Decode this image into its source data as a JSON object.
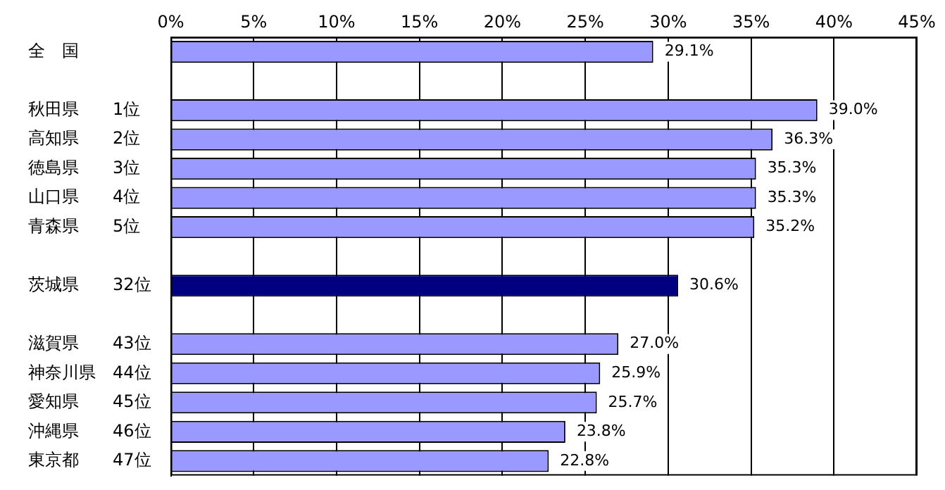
{
  "chart_data": {
    "type": "bar",
    "orientation": "horizontal",
    "categories": [
      "全　国",
      null,
      "秋田県　　1位",
      "高知県　　2位",
      "徳島県　　3位",
      "山口県　　4位",
      "青森県　　5位",
      null,
      "茨城県　　32位",
      null,
      "滋賀県　　43位",
      "神奈川県　44位",
      "愛知県　　45位",
      "沖縄県　　46位",
      "東京都　　47位"
    ],
    "values": [
      29.1,
      null,
      39.0,
      36.3,
      35.3,
      35.3,
      35.2,
      null,
      30.6,
      null,
      27.0,
      25.9,
      25.7,
      23.8,
      22.8
    ],
    "colors": [
      "#9999ff",
      null,
      "#9999ff",
      "#9999ff",
      "#9999ff",
      "#9999ff",
      "#9999ff",
      null,
      "#000080",
      null,
      "#9999ff",
      "#9999ff",
      "#9999ff",
      "#9999ff",
      "#9999ff"
    ],
    "value_labels": [
      "29.1%",
      null,
      "39.0%",
      "36.3%",
      "35.3%",
      "35.3%",
      "35.2%",
      null,
      "30.6%",
      null,
      "27.0%",
      "25.9%",
      "25.7%",
      "23.8%",
      "22.8%"
    ],
    "xlim": [
      0,
      45
    ],
    "xticks": [
      {
        "value": 0,
        "label": "0%"
      },
      {
        "value": 5,
        "label": "5%"
      },
      {
        "value": 10,
        "label": "10%"
      },
      {
        "value": 15,
        "label": "15%"
      },
      {
        "value": 20,
        "label": "20%"
      },
      {
        "value": 25,
        "label": "25%"
      },
      {
        "value": 30,
        "label": "30%"
      },
      {
        "value": 35,
        "label": "35%"
      },
      {
        "value": 40,
        "label": "40%"
      },
      {
        "value": 45,
        "label": "45%"
      }
    ],
    "grid": "x",
    "legend": false
  }
}
